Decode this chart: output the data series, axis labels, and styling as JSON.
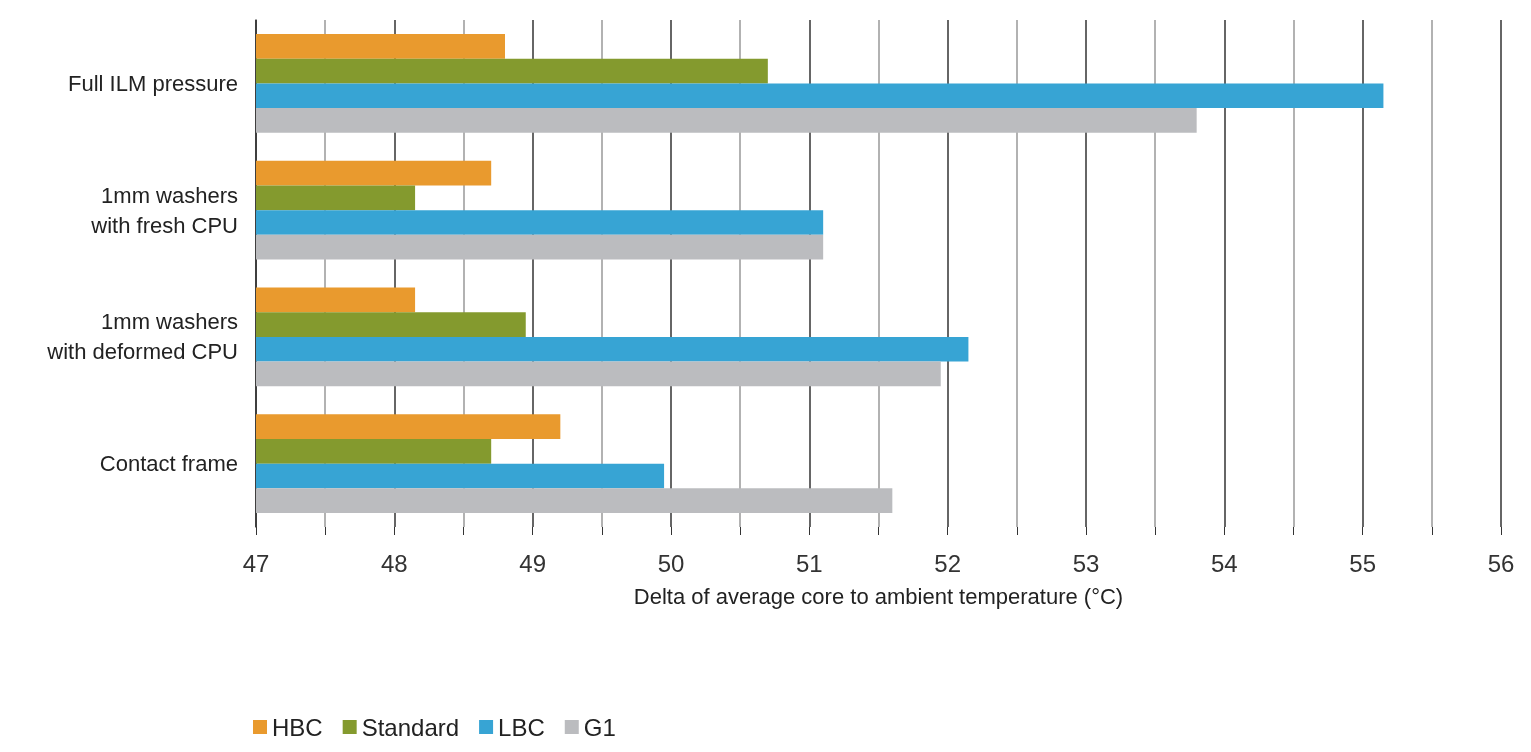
{
  "chart_data": {
    "type": "bar",
    "orientation": "horizontal",
    "xlabel": "Delta of average core to ambient temperature (°C)",
    "categories": [
      "Full ILM pressure",
      "1mm washers\nwith fresh CPU",
      "1mm washers\nwith deformed CPU",
      "Contact frame"
    ],
    "series": [
      {
        "name": "HBC",
        "color": "#e99a2e",
        "values": [
          48.8,
          48.7,
          48.15,
          49.2
        ]
      },
      {
        "name": "Standard",
        "color": "#849a2e",
        "values": [
          50.7,
          48.15,
          48.95,
          48.7
        ]
      },
      {
        "name": "LBC",
        "color": "#37a4d4",
        "values": [
          55.15,
          51.1,
          52.15,
          49.95
        ]
      },
      {
        "name": "G1",
        "color": "#bbbcbf",
        "values": [
          53.8,
          51.1,
          51.95,
          51.6
        ]
      }
    ],
    "xlim": [
      47,
      56
    ],
    "xticks": [
      47,
      {
        "value": 47.5,
        "label": null
      },
      48,
      {
        "value": 48.5,
        "label": null
      },
      49,
      {
        "value": 49.5,
        "label": null
      },
      50,
      {
        "value": 50.5,
        "label": null
      },
      51,
      {
        "value": 51.5,
        "label": null
      },
      52,
      {
        "value": 52.5,
        "label": null
      },
      53,
      {
        "value": 53.5,
        "label": null
      },
      54,
      {
        "value": 54.5,
        "label": null
      },
      55,
      {
        "value": 55.5,
        "label": null
      },
      56
    ],
    "grid": "x",
    "legend": "bottom left"
  }
}
